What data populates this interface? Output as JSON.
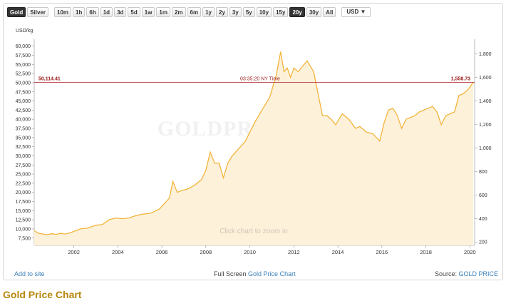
{
  "toolbar": {
    "metals": [
      {
        "label": "Gold",
        "active": true
      },
      {
        "label": "Silver",
        "active": false
      }
    ],
    "ranges": [
      {
        "label": "10m",
        "active": false
      },
      {
        "label": "1h",
        "active": false
      },
      {
        "label": "6h",
        "active": false
      },
      {
        "label": "1d",
        "active": false
      },
      {
        "label": "3d",
        "active": false
      },
      {
        "label": "5d",
        "active": false
      },
      {
        "label": "1w",
        "active": false
      },
      {
        "label": "1m",
        "active": false
      },
      {
        "label": "2m",
        "active": false
      },
      {
        "label": "6m",
        "active": false
      },
      {
        "label": "1y",
        "active": false
      },
      {
        "label": "2y",
        "active": false
      },
      {
        "label": "3y",
        "active": false
      },
      {
        "label": "5y",
        "active": false
      },
      {
        "label": "10y",
        "active": false
      },
      {
        "label": "15y",
        "active": false
      },
      {
        "label": "20y",
        "active": true
      },
      {
        "label": "30y",
        "active": false
      },
      {
        "label": "All",
        "active": false
      }
    ],
    "currency": "USD",
    "currency_arrow": "▼"
  },
  "chart_data": {
    "type": "area",
    "units_label": "USD/kg",
    "watermark": "GOLDPRICE.ORG",
    "zoom_hint": "Click chart to zoom in",
    "current_left_value": "50,114.41",
    "current_right_value": "1,558.73",
    "current_time": "03:35:20 NY Time",
    "current_value_kg": 50114.41,
    "xlim": [
      2000.2,
      2020.15
    ],
    "ylim_left": [
      5500,
      61500
    ],
    "y_left_ticks": [
      "7,500",
      "10,000",
      "12,500",
      "15,000",
      "17,500",
      "20,000",
      "22,500",
      "25,000",
      "27,500",
      "30,000",
      "32,500",
      "35,000",
      "37,500",
      "40,000",
      "42,500",
      "45,000",
      "47,500",
      "50,000",
      "52,500",
      "55,000",
      "57,500",
      "60,000"
    ],
    "y_left_tick_values": [
      7500,
      10000,
      12500,
      15000,
      17500,
      20000,
      22500,
      25000,
      27500,
      30000,
      32500,
      35000,
      37500,
      40000,
      42500,
      45000,
      47500,
      50000,
      52500,
      55000,
      57500,
      60000
    ],
    "y_right_ticks": [
      "200",
      "400",
      "600",
      "800",
      "1,000",
      "1,200",
      "1,400",
      "1,600",
      "1,800"
    ],
    "y_right_tick_values": [
      200,
      400,
      600,
      800,
      1000,
      1200,
      1400,
      1600,
      1800
    ],
    "x_ticks": [
      "2002",
      "2004",
      "2006",
      "2008",
      "2010",
      "2012",
      "2014",
      "2016",
      "2018",
      "2020"
    ],
    "x_tick_values": [
      2002,
      2004,
      2006,
      2008,
      2010,
      2012,
      2014,
      2016,
      2018,
      2020
    ],
    "colors": {
      "line": "#f2b43a",
      "fill": "#fdf1da",
      "marker": "#b0202a",
      "text": "#9a1a1a"
    },
    "series": [
      {
        "x": [
          2000.2,
          2000.4,
          2000.6,
          2000.8,
          2001.0,
          2001.2,
          2001.4,
          2001.6,
          2001.8,
          2002.0,
          2002.3,
          2002.6,
          2003.0,
          2003.3,
          2003.6,
          2003.9,
          2004.2,
          2004.5,
          2004.8,
          2005.1,
          2005.5,
          2005.9,
          2006.2,
          2006.35,
          2006.5,
          2006.7,
          2006.9,
          2007.2,
          2007.5,
          2007.8,
          2008.0,
          2008.2,
          2008.4,
          2008.6,
          2008.8,
          2009.0,
          2009.2,
          2009.5,
          2009.8,
          2010.0,
          2010.3,
          2010.6,
          2010.9,
          2011.2,
          2011.4,
          2011.55,
          2011.7,
          2011.85,
          2012.0,
          2012.2,
          2012.4,
          2012.6,
          2012.75,
          2012.9,
          2013.1,
          2013.3,
          2013.5,
          2013.7,
          2013.9,
          2014.2,
          2014.5,
          2014.8,
          2015.0,
          2015.3,
          2015.6,
          2015.9,
          2016.1,
          2016.3,
          2016.5,
          2016.7,
          2016.9,
          2017.1,
          2017.3,
          2017.5,
          2017.7,
          2017.9,
          2018.1,
          2018.3,
          2018.5,
          2018.7,
          2018.9,
          2019.1,
          2019.3,
          2019.5,
          2019.7,
          2019.9,
          2020.15
        ],
        "y": [
          9500,
          8800,
          8600,
          8400,
          8700,
          8500,
          8800,
          8600,
          8900,
          9300,
          10000,
          10200,
          11000,
          11200,
          12500,
          13000,
          12800,
          13000,
          13600,
          14000,
          14300,
          15500,
          17500,
          18500,
          23000,
          20000,
          20500,
          21000,
          22000,
          23500,
          26000,
          31000,
          28000,
          28000,
          24000,
          28000,
          30000,
          32000,
          34000,
          36500,
          40000,
          43000,
          46000,
          52000,
          58500,
          53000,
          54000,
          51500,
          54000,
          53000,
          54500,
          56000,
          54500,
          53000,
          47000,
          41000,
          41000,
          40000,
          38500,
          41500,
          40000,
          37500,
          38000,
          36500,
          36000,
          34000,
          39000,
          42500,
          43000,
          41000,
          37500,
          40000,
          40500,
          41000,
          42000,
          42500,
          43000,
          43500,
          42000,
          38500,
          41000,
          41500,
          42000,
          46500,
          47000,
          48000,
          50100
        ]
      }
    ]
  },
  "footer": {
    "add_to_site": "Add to site",
    "fullscreen_prefix": "Full Screen",
    "fullscreen_link": "Gold Price Chart",
    "source_prefix": "Source:",
    "source_link": "GOLD PRICE"
  },
  "page_title": "Gold Price Chart"
}
